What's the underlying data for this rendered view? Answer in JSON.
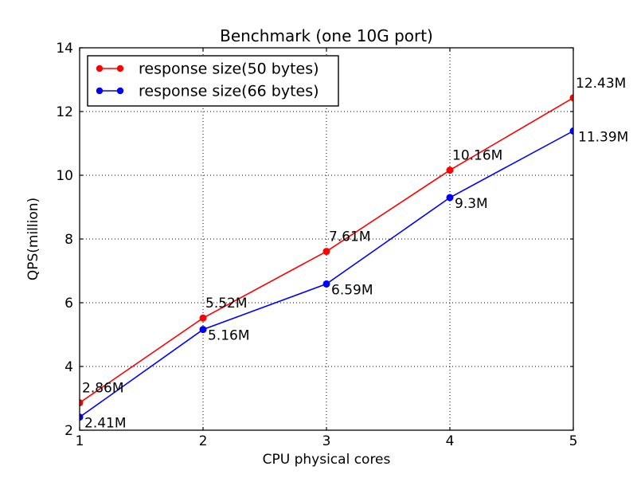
{
  "chart_data": {
    "type": "line",
    "title": "Benchmark (one 10G port)",
    "xlabel": "CPU physical cores",
    "ylabel": "QPS(million)",
    "x": [
      1,
      2,
      3,
      4,
      5
    ],
    "xlim": [
      1,
      5
    ],
    "ylim": [
      2,
      14
    ],
    "xticks": [
      "1",
      "2",
      "3",
      "4",
      "5"
    ],
    "yticks": [
      "2",
      "4",
      "6",
      "8",
      "10",
      "12",
      "14"
    ],
    "ytick_values": [
      2,
      4,
      6,
      8,
      10,
      12,
      14
    ],
    "grid": true,
    "grid_style": "dotted",
    "legend_position": "upper left",
    "series": [
      {
        "name": "response size(50 bytes)",
        "color": "#ff0000",
        "values": [
          2.86,
          5.52,
          7.61,
          10.16,
          12.43
        ],
        "labels": [
          "2.86M",
          "5.52M",
          "7.61M",
          "10.16M",
          "12.43M"
        ],
        "annotation_side": "above"
      },
      {
        "name": "response size(66 bytes)",
        "color": "#0000ff",
        "values": [
          2.41,
          5.16,
          6.59,
          9.3,
          11.39
        ],
        "labels": [
          "2.41M",
          "5.16M",
          "6.59M",
          "9.3M",
          "11.39M"
        ],
        "annotation_side": "below"
      }
    ],
    "colors": {
      "background": "#ffffff",
      "axis": "#000000",
      "grid": "#000000",
      "text": "#000000",
      "series_red": "#ff0000",
      "series_blue": "#0000ff"
    }
  }
}
